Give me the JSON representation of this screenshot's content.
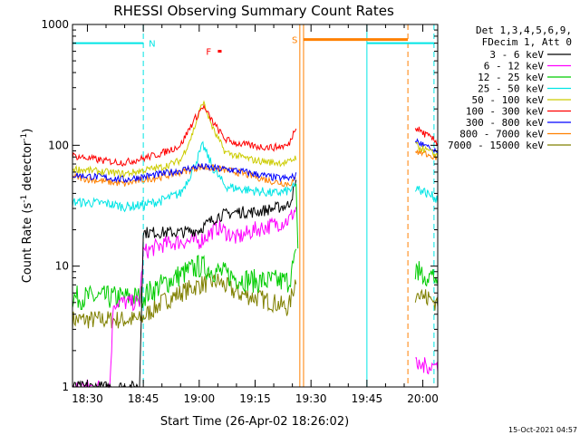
{
  "chart_data": {
    "type": "line",
    "title": "RHESSI Observing Summary Count Rates",
    "xlabel": "Start Time (26-Apr-02 18:26:02)",
    "ylabel": "Count Rate (s⁻¹ detector⁻¹)",
    "ylabel_main": "Count Rate (s",
    "ylabel_sup1": "-1",
    "ylabel_mid": " detector",
    "ylabel_sup2": "-1",
    "ylabel_end": ")",
    "y_scale": "log",
    "ylim": [
      1,
      1000
    ],
    "xlim": [
      "18:26",
      "20:04"
    ],
    "x_ticks": [
      "18:30",
      "18:45",
      "19:00",
      "19:15",
      "19:30",
      "19:45",
      "20:00"
    ],
    "y_ticks": [
      "1",
      "10",
      "100",
      "1000"
    ],
    "timestamp": "15-Oct-2021 04:57",
    "legend": {
      "placement": "right",
      "header": [
        "Det 1,3,4,5,6,9,",
        "FDecim 1, Att 0"
      ]
    },
    "series": [
      {
        "name": "3 - 6 keV",
        "color": "#000000",
        "x": [
          "18:26",
          "18:44",
          "18:45",
          "18:50",
          "18:55",
          "19:00",
          "19:05",
          "19:10",
          "19:15",
          "19:20",
          "19:24",
          "19:26"
        ],
        "y": [
          1,
          1,
          19,
          19,
          19,
          20,
          26,
          28,
          28,
          30,
          32,
          48
        ]
      },
      {
        "name": "6 - 12 keV",
        "color": "#ff00ff",
        "x": [
          "18:26",
          "18:36",
          "18:37",
          "18:41",
          "18:44",
          "18:45",
          "18:50",
          "18:55",
          "19:00",
          "19:05",
          "19:10",
          "19:15",
          "19:20",
          "19:24",
          "19:26"
        ],
        "y": [
          1,
          1,
          5,
          5,
          5,
          13,
          15,
          16,
          16,
          21,
          17,
          20,
          22,
          24,
          30
        ]
      },
      {
        "name": "12 - 25 keV",
        "color": "#00cc00",
        "x": [
          "18:26",
          "18:44",
          "18:50",
          "18:55",
          "19:00",
          "19:05",
          "19:10",
          "19:15",
          "19:20",
          "19:24",
          "19:26"
        ],
        "y": [
          5.5,
          5.5,
          7,
          8.5,
          10,
          9,
          8,
          7.5,
          7.5,
          7.5,
          12
        ]
      },
      {
        "name": "25 - 50 keV",
        "color": "#00e5e5",
        "x": [
          "18:26",
          "18:35",
          "18:40",
          "18:45",
          "18:50",
          "18:55",
          "18:58",
          "19:01",
          "19:04",
          "19:07",
          "19:10",
          "19:15",
          "19:20",
          "19:24",
          "19:26"
        ],
        "y": [
          34,
          33,
          31,
          32,
          35,
          40,
          60,
          100,
          62,
          46,
          44,
          42,
          40,
          42,
          46
        ]
      },
      {
        "name": "50 - 100 keV",
        "color": "#cccc00",
        "x": [
          "18:26",
          "18:35",
          "18:40",
          "18:45",
          "18:50",
          "18:55",
          "18:58",
          "19:01",
          "19:04",
          "19:07",
          "19:10",
          "19:15",
          "19:20",
          "19:24",
          "19:26"
        ],
        "y": [
          64,
          60,
          58,
          62,
          66,
          75,
          120,
          230,
          130,
          88,
          82,
          75,
          72,
          72,
          80
        ]
      },
      {
        "name": "100 - 300 keV",
        "color": "#ff0000",
        "x": [
          "18:26",
          "18:35",
          "18:40",
          "18:45",
          "18:50",
          "18:55",
          "18:58",
          "19:01",
          "19:04",
          "19:07",
          "19:10",
          "19:15",
          "19:20",
          "19:24",
          "19:26"
        ],
        "y": [
          82,
          74,
          72,
          78,
          86,
          100,
          150,
          210,
          150,
          112,
          104,
          98,
          96,
          100,
          145
        ]
      },
      {
        "name": "300 - 800 keV",
        "color": "#0000ff",
        "x": [
          "18:26",
          "18:35",
          "18:40",
          "18:45",
          "18:50",
          "18:55",
          "19:00",
          "19:05",
          "19:10",
          "19:15",
          "19:20",
          "19:24",
          "19:26"
        ],
        "y": [
          57,
          54,
          52,
          55,
          58,
          62,
          67,
          64,
          62,
          58,
          54,
          53,
          56
        ]
      },
      {
        "name": "800 - 7000 keV",
        "color": "#ff8000",
        "x": [
          "18:26",
          "18:35",
          "18:40",
          "18:45",
          "18:50",
          "18:55",
          "19:00",
          "19:05",
          "19:10",
          "19:15",
          "19:20",
          "19:24",
          "19:26"
        ],
        "y": [
          55,
          50,
          48,
          52,
          55,
          60,
          66,
          64,
          60,
          55,
          50,
          48,
          52
        ]
      },
      {
        "name": "7000 - 15000 keV",
        "color": "#808000",
        "x": [
          "18:26",
          "18:44",
          "18:50",
          "18:55",
          "19:00",
          "19:05",
          "19:10",
          "19:15",
          "19:20",
          "19:24",
          "19:26"
        ],
        "y": [
          3.6,
          3.6,
          5,
          6,
          7,
          7.5,
          6,
          5.5,
          5,
          4.5,
          8
        ]
      }
    ],
    "series_after_gap": {
      "x": [
        "19:58",
        "20:04"
      ],
      "y": {
        "3 - 6 keV": [
          null,
          null
        ],
        "6 - 12 keV": [
          1.5,
          1.5
        ],
        "12 - 25 keV": [
          9,
          8
        ],
        "25 - 50 keV": [
          45,
          36
        ],
        "50 - 100 keV": [
          100,
          82
        ],
        "100 - 300 keV": [
          140,
          105
        ],
        "300 - 800 keV": [
          110,
          85
        ],
        "800 - 7000 keV": [
          90,
          78
        ],
        "7000 - 15000 keV": [
          6,
          5
        ]
      }
    },
    "annotations": {
      "N_label": "N",
      "F_label": "F",
      "S_label": "S",
      "night_bars": [
        {
          "start": "18:26",
          "end": "18:45",
          "level": 700
        },
        {
          "start": "19:45",
          "end": "20:03",
          "level": 700
        }
      ],
      "flare_bar": {
        "start": "19:05",
        "end": "19:06",
        "level": 600
      },
      "saa_bar": {
        "start": "19:28",
        "end": "19:56",
        "level": 750
      },
      "vlines": [
        {
          "x": "18:45",
          "color": "#00e5e5",
          "style": "dashed"
        },
        {
          "x": "19:45",
          "color": "#00e5e5",
          "style": "solid"
        },
        {
          "x": "20:03",
          "color": "#00e5e5",
          "style": "dashed"
        },
        {
          "x": "19:27",
          "color": "#ff8000",
          "style": "solid"
        },
        {
          "x": "19:28",
          "color": "#ff8000",
          "style": "solid"
        },
        {
          "x": "19:56",
          "color": "#ff8000",
          "style": "dashed"
        }
      ]
    }
  }
}
